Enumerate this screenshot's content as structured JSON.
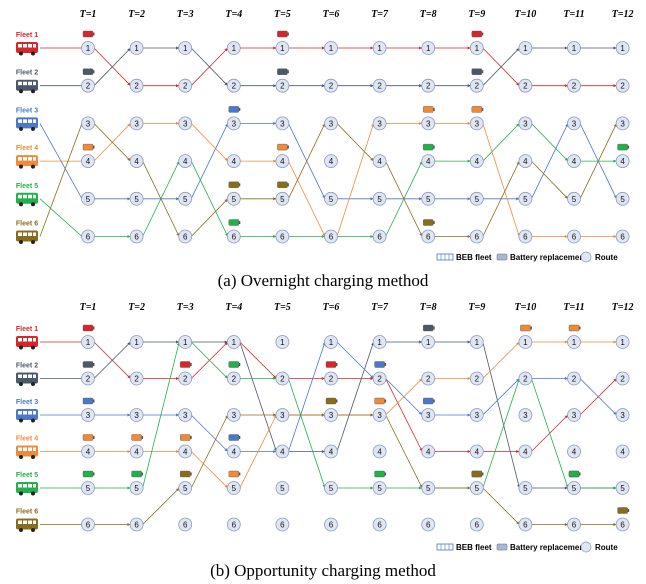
{
  "time_labels": [
    "T=1",
    "T=2",
    "T=3",
    "T=4",
    "T=5",
    "T=6",
    "T=7",
    "T=8",
    "T=9",
    "T=10",
    "T=11",
    "T=12"
  ],
  "route_ids": [
    "1",
    "2",
    "3",
    "4",
    "5",
    "6"
  ],
  "fleets": [
    {
      "label": "Fleet 1",
      "color": "#d9252a"
    },
    {
      "label": "Fleet 2",
      "color": "#4a5868"
    },
    {
      "label": "Fleet 3",
      "color": "#4b78c8"
    },
    {
      "label": "Fleet 4",
      "color": "#f0893a"
    },
    {
      "label": "Fleet 5",
      "color": "#22b04b"
    },
    {
      "label": "Fleet 6",
      "color": "#8a6d1c"
    }
  ],
  "legend": {
    "fleet": "BEB fleet",
    "battery": "Battery replacement",
    "route": "Route"
  },
  "diagrams": [
    {
      "caption": "(a) Overnight charging method",
      "paths": [
        [
          1,
          2,
          2,
          1,
          1,
          1,
          1,
          1,
          1,
          2,
          2,
          2
        ],
        [
          2,
          1,
          1,
          2,
          2,
          2,
          2,
          2,
          2,
          1,
          1,
          1
        ],
        [
          5,
          5,
          5,
          3,
          3,
          5,
          5,
          5,
          5,
          5,
          3,
          5
        ],
        [
          4,
          3,
          3,
          4,
          4,
          6,
          3,
          3,
          3,
          6,
          6,
          6
        ],
        [
          6,
          6,
          4,
          6,
          6,
          6,
          6,
          4,
          4,
          3,
          4,
          4
        ],
        [
          3,
          4,
          6,
          5,
          5,
          3,
          4,
          6,
          6,
          4,
          5,
          3
        ]
      ],
      "batteries": [
        [
          1,
          1
        ],
        [
          1,
          5
        ],
        [
          1,
          9
        ],
        [
          2,
          1
        ],
        [
          2,
          5
        ],
        [
          2,
          9
        ],
        [
          3,
          4
        ],
        [
          4,
          1
        ],
        [
          4,
          9
        ],
        [
          4,
          5
        ],
        [
          4,
          8
        ],
        [
          5,
          4
        ],
        [
          5,
          8
        ],
        [
          5,
          12
        ],
        [
          6,
          4
        ],
        [
          6,
          5
        ],
        [
          6,
          8
        ]
      ]
    },
    {
      "caption": "(b) Opportunity charging method",
      "paths": [
        [
          1,
          2,
          2,
          1,
          2,
          2,
          2,
          4,
          4,
          4,
          3,
          2
        ],
        [
          2,
          1,
          1,
          1,
          4,
          4,
          1,
          1,
          1,
          5,
          5,
          5
        ],
        [
          3,
          3,
          3,
          4,
          4,
          1,
          2,
          3,
          3,
          2,
          2,
          3
        ],
        [
          4,
          4,
          4,
          5,
          3,
          3,
          3,
          2,
          2,
          1,
          1,
          1
        ],
        [
          5,
          5,
          1,
          2,
          2,
          5,
          5,
          5,
          5,
          2,
          5,
          5
        ],
        [
          6,
          6,
          5,
          3,
          3,
          3,
          3,
          5,
          5,
          6,
          6,
          6
        ]
      ],
      "batteries": [
        [
          1,
          1
        ],
        [
          1,
          3
        ],
        [
          1,
          6
        ],
        [
          2,
          1
        ],
        [
          2,
          8
        ],
        [
          2,
          11
        ],
        [
          3,
          1
        ],
        [
          3,
          4
        ],
        [
          3,
          7
        ],
        [
          3,
          8
        ],
        [
          4,
          1
        ],
        [
          4,
          2
        ],
        [
          4,
          3
        ],
        [
          4,
          4
        ],
        [
          4,
          7
        ],
        [
          4,
          10
        ],
        [
          4,
          11
        ],
        [
          5,
          1
        ],
        [
          5,
          2
        ],
        [
          5,
          4
        ],
        [
          5,
          7
        ],
        [
          5,
          9
        ],
        [
          5,
          11
        ],
        [
          6,
          3
        ],
        [
          6,
          6
        ],
        [
          6,
          9
        ],
        [
          6,
          12
        ]
      ]
    }
  ]
}
